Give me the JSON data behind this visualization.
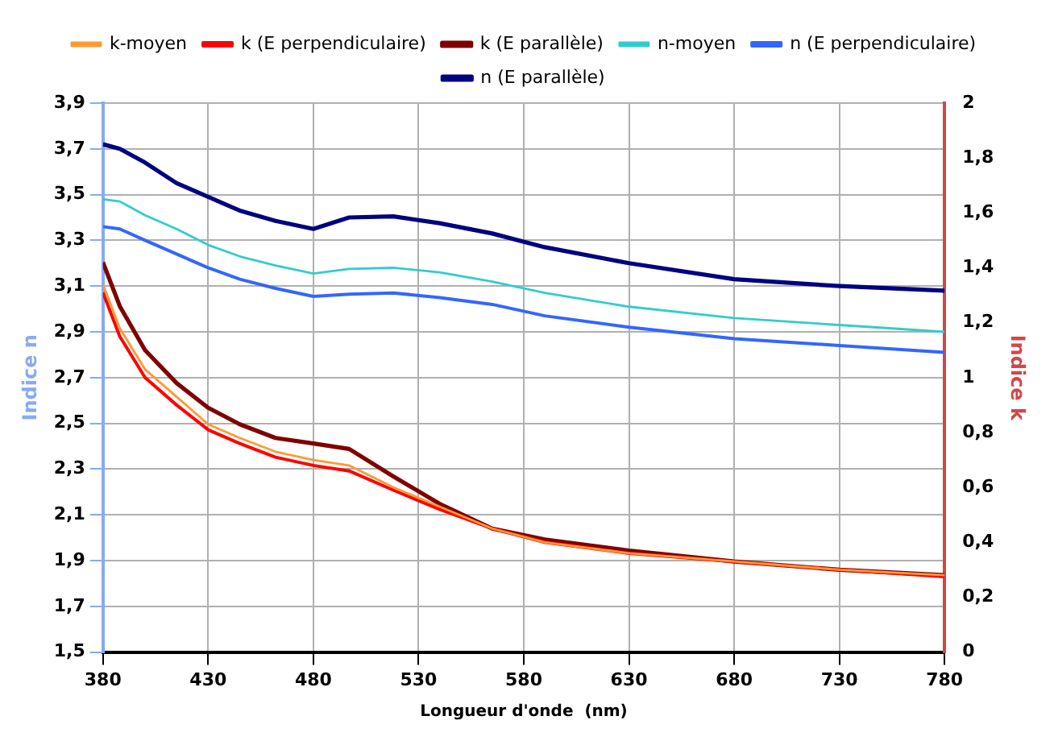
{
  "chart_data": {
    "type": "line",
    "xlabel": "Longueur d'onde  (nm)",
    "ylabel": "Indice n",
    "y2label": "Indice k",
    "x": [
      380,
      388,
      400,
      415,
      430,
      445,
      462,
      480,
      497,
      518,
      540,
      565,
      590,
      630,
      680,
      730,
      780
    ],
    "series": [
      {
        "name": "n (E parallèle)",
        "color": "#000080",
        "values": [
          3.72,
          3.7,
          3.64,
          3.55,
          3.49,
          3.43,
          3.385,
          3.35,
          3.4,
          3.405,
          3.375,
          3.33,
          3.27,
          3.2,
          3.13,
          3.1,
          3.08
        ]
      },
      {
        "name": "n (E perpendiculaire)",
        "color": "#3366ff",
        "values": [
          3.36,
          3.35,
          3.3,
          3.24,
          3.18,
          3.13,
          3.09,
          3.055,
          3.065,
          3.07,
          3.05,
          3.02,
          2.97,
          2.92,
          2.87,
          2.84,
          2.81
        ]
      },
      {
        "name": "n-moyen",
        "color": "#33cccc",
        "values": [
          3.48,
          3.47,
          3.41,
          3.35,
          3.28,
          3.23,
          3.19,
          3.155,
          3.175,
          3.18,
          3.16,
          3.12,
          3.07,
          3.01,
          2.96,
          2.93,
          2.9
        ]
      },
      {
        "name": "k (E parallèle)",
        "color": "#800000",
        "axis": "y2",
        "values": [
          1.42,
          1.26,
          1.1,
          0.98,
          0.89,
          0.83,
          0.78,
          0.76,
          0.74,
          0.64,
          0.54,
          0.45,
          0.41,
          0.37,
          0.33,
          0.3,
          0.28
        ]
      },
      {
        "name": "k (E perpendiculaire)",
        "color": "#ff0000",
        "axis": "y2",
        "values": [
          1.31,
          1.15,
          1.0,
          0.9,
          0.81,
          0.76,
          0.71,
          0.68,
          0.66,
          0.59,
          0.52,
          0.45,
          0.4,
          0.36,
          0.33,
          0.3,
          0.275
        ]
      },
      {
        "name": "k-moyen",
        "color": "#ff9933",
        "axis": "y2",
        "values": [
          1.34,
          1.18,
          1.03,
          0.93,
          0.83,
          0.78,
          0.73,
          0.7,
          0.68,
          0.6,
          0.53,
          0.45,
          0.4,
          0.36,
          0.33,
          0.3,
          0.28
        ]
      }
    ],
    "xlim": [
      380,
      780
    ],
    "xticks": [
      380,
      430,
      480,
      530,
      580,
      630,
      680,
      730,
      780
    ],
    "ylim": [
      1.5,
      3.9
    ],
    "yticks": [
      {
        "value": 1.5,
        "label": "1,5"
      },
      {
        "value": 1.7,
        "label": "1,7"
      },
      {
        "value": 1.9,
        "label": "1,9"
      },
      {
        "value": 2.1,
        "label": "2,1"
      },
      {
        "value": 2.3,
        "label": "2,3"
      },
      {
        "value": 2.5,
        "label": "2,5"
      },
      {
        "value": 2.7,
        "label": "2,7"
      },
      {
        "value": 2.9,
        "label": "2,9"
      },
      {
        "value": 3.1,
        "label": "3,1"
      },
      {
        "value": 3.3,
        "label": "3,3"
      },
      {
        "value": 3.5,
        "label": "3,5"
      },
      {
        "value": 3.7,
        "label": "3,7"
      },
      {
        "value": 3.9,
        "label": "3,9"
      }
    ],
    "y2lim": [
      0,
      2
    ],
    "y2ticks": [
      0,
      {
        "value": 0.2,
        "label": "0,2"
      },
      {
        "value": 0.4,
        "label": "0,4"
      },
      {
        "value": 0.6,
        "label": "0,6"
      },
      {
        "value": 0.8,
        "label": "0,8"
      },
      1,
      {
        "value": 1.2,
        "label": "1,2"
      },
      {
        "value": 1.4,
        "label": "1,4"
      },
      {
        "value": 1.6,
        "label": "1,6"
      },
      {
        "value": 1.8,
        "label": "1,8"
      },
      2
    ],
    "grid": true,
    "legend": "top",
    "marker": "none",
    "line_style": "solid"
  }
}
